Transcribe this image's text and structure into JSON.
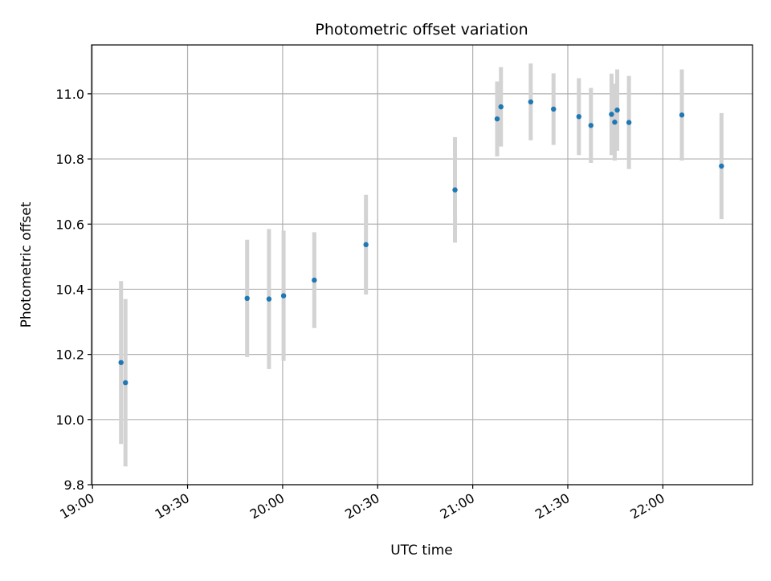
{
  "chart_data": {
    "type": "scatter",
    "title": "Photometric offset variation",
    "xlabel": "UTC time",
    "ylabel": "Photometric offset",
    "x_range_minutes": [
      1139.7,
      1348.3
    ],
    "x_tick_minutes": [
      1140,
      1170,
      1200,
      1230,
      1260,
      1290,
      1320
    ],
    "x_tick_labels": [
      "19:00",
      "19:30",
      "20:00",
      "20:30",
      "21:00",
      "21:30",
      "22:00"
    ],
    "ylim": [
      9.8,
      11.15
    ],
    "y_ticks": [
      9.8,
      10.0,
      10.2,
      10.4,
      10.6,
      10.8,
      11.0
    ],
    "y_tick_labels": [
      "9.8",
      "10.0",
      "10.2",
      "10.4",
      "10.6",
      "10.8",
      "11.0"
    ],
    "grid": true,
    "colors": {
      "point": "#1f77b4",
      "errorbar": "#d3d3d3",
      "grid": "#b0b0b0"
    },
    "points": [
      {
        "t": "19:09",
        "minute": 1149.0,
        "y": 10.175,
        "err": 0.25
      },
      {
        "t": "19:10",
        "minute": 1150.4,
        "y": 10.113,
        "err": 0.257
      },
      {
        "t": "19:48",
        "minute": 1188.8,
        "y": 10.372,
        "err": 0.18
      },
      {
        "t": "19:55",
        "minute": 1195.7,
        "y": 10.37,
        "err": 0.215
      },
      {
        "t": "20:00",
        "minute": 1200.3,
        "y": 10.38,
        "err": 0.2
      },
      {
        "t": "20:10",
        "minute": 1210.0,
        "y": 10.428,
        "err": 0.147
      },
      {
        "t": "20:26",
        "minute": 1226.3,
        "y": 10.537,
        "err": 0.153
      },
      {
        "t": "20:54",
        "minute": 1254.4,
        "y": 10.705,
        "err": 0.162
      },
      {
        "t": "21:07",
        "minute": 1267.7,
        "y": 10.923,
        "err": 0.115
      },
      {
        "t": "21:09",
        "minute": 1268.9,
        "y": 10.96,
        "err": 0.122
      },
      {
        "t": "21:18",
        "minute": 1278.3,
        "y": 10.975,
        "err": 0.118
      },
      {
        "t": "21:25",
        "minute": 1285.5,
        "y": 10.953,
        "err": 0.11
      },
      {
        "t": "21:33",
        "minute": 1293.5,
        "y": 10.93,
        "err": 0.118
      },
      {
        "t": "21:37",
        "minute": 1297.3,
        "y": 10.903,
        "err": 0.115
      },
      {
        "t": "21:43",
        "minute": 1303.8,
        "y": 10.937,
        "err": 0.125
      },
      {
        "t": "21:44",
        "minute": 1304.8,
        "y": 10.913,
        "err": 0.118
      },
      {
        "t": "21:45",
        "minute": 1305.6,
        "y": 10.95,
        "err": 0.125
      },
      {
        "t": "21:49",
        "minute": 1309.3,
        "y": 10.912,
        "err": 0.143
      },
      {
        "t": "22:06",
        "minute": 1326.0,
        "y": 10.935,
        "err": 0.14
      },
      {
        "t": "22:18",
        "minute": 1338.5,
        "y": 10.778,
        "err": 0.163
      }
    ]
  }
}
